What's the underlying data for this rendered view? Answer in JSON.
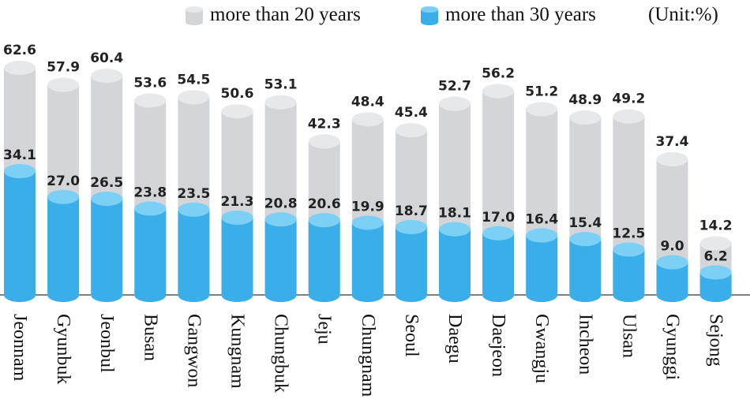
{
  "legend": {
    "series1_label": "more than 20 years",
    "series2_label": "more than 30 years",
    "unit": "(Unit:%)"
  },
  "colors": {
    "series1_body": "#d3d5d8",
    "series1_top": "#e6e8ea",
    "series2_body": "#3aaee8",
    "series2_top": "#7ccff5"
  },
  "chart_data": {
    "type": "bar",
    "categories": [
      "Jeonnam",
      "Gyunbuk",
      "Jeonbul",
      "Busan",
      "Gangwon",
      "Kungnam",
      "Chungbuk",
      "Jeju",
      "Chungnam",
      "Seoul",
      "Daegu",
      "Daejeon",
      "Gwangju",
      "Incheon",
      "Ulsan",
      "Gyunggi",
      "Sejong"
    ],
    "series": [
      {
        "name": "more than 20 years",
        "values": [
          62.6,
          57.9,
          60.4,
          53.6,
          54.5,
          50.6,
          53.1,
          42.3,
          48.4,
          45.4,
          52.7,
          56.2,
          51.2,
          48.9,
          49.2,
          37.4,
          14.2
        ]
      },
      {
        "name": "more than 30 years",
        "values": [
          34.1,
          27.0,
          26.5,
          23.8,
          23.5,
          21.3,
          20.8,
          20.6,
          19.9,
          18.7,
          18.1,
          17.0,
          16.4,
          15.4,
          12.5,
          9.0,
          6.2
        ]
      }
    ],
    "unit": "(Unit:%)",
    "ylim": [
      0,
      62.6
    ],
    "grid": false,
    "legend_position": "top-right"
  }
}
